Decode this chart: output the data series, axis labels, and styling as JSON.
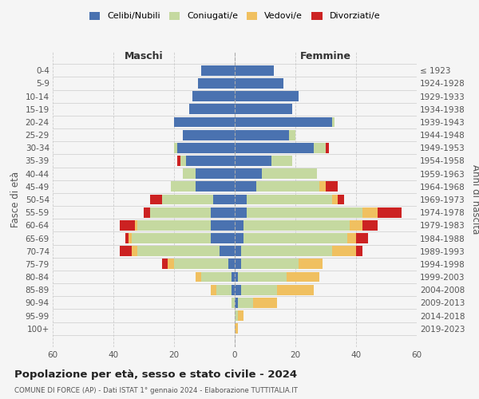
{
  "age_groups": [
    "0-4",
    "5-9",
    "10-14",
    "15-19",
    "20-24",
    "25-29",
    "30-34",
    "35-39",
    "40-44",
    "45-49",
    "50-54",
    "55-59",
    "60-64",
    "65-69",
    "70-74",
    "75-79",
    "80-84",
    "85-89",
    "90-94",
    "95-99",
    "100+"
  ],
  "birth_years": [
    "2019-2023",
    "2014-2018",
    "2009-2013",
    "2004-2008",
    "1999-2003",
    "1994-1998",
    "1989-1993",
    "1984-1988",
    "1979-1983",
    "1974-1978",
    "1969-1973",
    "1964-1968",
    "1959-1963",
    "1954-1958",
    "1949-1953",
    "1944-1948",
    "1939-1943",
    "1934-1938",
    "1929-1933",
    "1924-1928",
    "≤ 1923"
  ],
  "colors": {
    "celibe": "#4a72b0",
    "coniugato": "#c5d9a0",
    "vedovo": "#f0c060",
    "divorziato": "#cc2222"
  },
  "maschi": {
    "celibe": [
      11,
      12,
      14,
      15,
      20,
      17,
      19,
      16,
      13,
      13,
      7,
      8,
      8,
      8,
      5,
      2,
      1,
      1,
      0,
      0,
      0
    ],
    "coniugato": [
      0,
      0,
      0,
      0,
      0,
      0,
      1,
      2,
      4,
      8,
      17,
      20,
      24,
      26,
      27,
      18,
      10,
      5,
      1,
      0,
      0
    ],
    "vedovo": [
      0,
      0,
      0,
      0,
      0,
      0,
      0,
      0,
      0,
      0,
      0,
      0,
      1,
      1,
      2,
      2,
      2,
      2,
      0,
      0,
      0
    ],
    "divorziato": [
      0,
      0,
      0,
      0,
      0,
      0,
      0,
      1,
      0,
      0,
      4,
      2,
      5,
      1,
      4,
      2,
      0,
      0,
      0,
      0,
      0
    ]
  },
  "femmine": {
    "nubile": [
      13,
      16,
      21,
      19,
      32,
      18,
      26,
      12,
      9,
      7,
      4,
      4,
      3,
      3,
      2,
      2,
      1,
      2,
      1,
      0,
      0
    ],
    "coniugata": [
      0,
      0,
      0,
      0,
      1,
      2,
      4,
      7,
      18,
      21,
      28,
      38,
      35,
      34,
      30,
      19,
      16,
      12,
      5,
      1,
      0
    ],
    "vedova": [
      0,
      0,
      0,
      0,
      0,
      0,
      0,
      0,
      0,
      2,
      2,
      5,
      4,
      3,
      8,
      8,
      11,
      12,
      8,
      2,
      1
    ],
    "divorziata": [
      0,
      0,
      0,
      0,
      0,
      0,
      1,
      0,
      0,
      4,
      2,
      8,
      5,
      4,
      2,
      0,
      0,
      0,
      0,
      0,
      0
    ]
  },
  "xlim": 60,
  "title": "Popolazione per età, sesso e stato civile - 2024",
  "subtitle": "COMUNE DI FORCE (AP) - Dati ISTAT 1° gennaio 2024 - Elaborazione TUTTITALIA.IT",
  "ylabel": "Fasce di età",
  "ylabel_right": "Anni di nascita",
  "xlabel_left": "Maschi",
  "xlabel_right": "Femmine",
  "legend_labels": [
    "Celibi/Nubili",
    "Coniugati/e",
    "Vedovi/e",
    "Divorziati/e"
  ],
  "bg_color": "#f5f5f5",
  "grid_color": "#cccccc"
}
